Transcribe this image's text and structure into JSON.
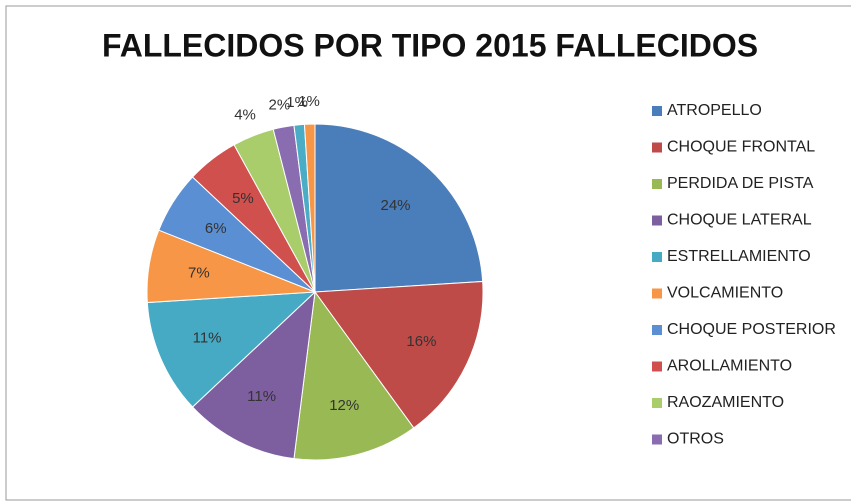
{
  "chart_data": {
    "type": "pie",
    "title": "FALLECIDOS POR TIPO 2015 FALLECIDOS",
    "categories": [
      "ATROPELLO",
      "CHOQUE FRONTAL",
      "PERDIDA DE PISTA",
      "CHOQUE LATERAL",
      "ESTRELLAMIENTO",
      "VOLCAMIENTO",
      "CHOQUE POSTERIOR",
      "AROLLAMIENTO",
      "RAOZAMIENTO",
      "OTROS",
      null,
      null
    ],
    "values": [
      24,
      16,
      12,
      11,
      11,
      7,
      6,
      5,
      4,
      2,
      1,
      1
    ],
    "value_labels": [
      "24%",
      "16%",
      "12%",
      "11%",
      "11%",
      "7%",
      "6%",
      "5%",
      "4%",
      "2%",
      "1%",
      "1%"
    ],
    "colors": [
      "#4a7ebb",
      "#be4b48",
      "#98b954",
      "#7d5fa0",
      "#46aac5",
      "#f79646",
      "#5b8fd4",
      "#d0504d",
      "#a9cd6a",
      "#8a6cb0",
      "#4bacc6",
      "#f79646"
    ],
    "legend": "right"
  }
}
